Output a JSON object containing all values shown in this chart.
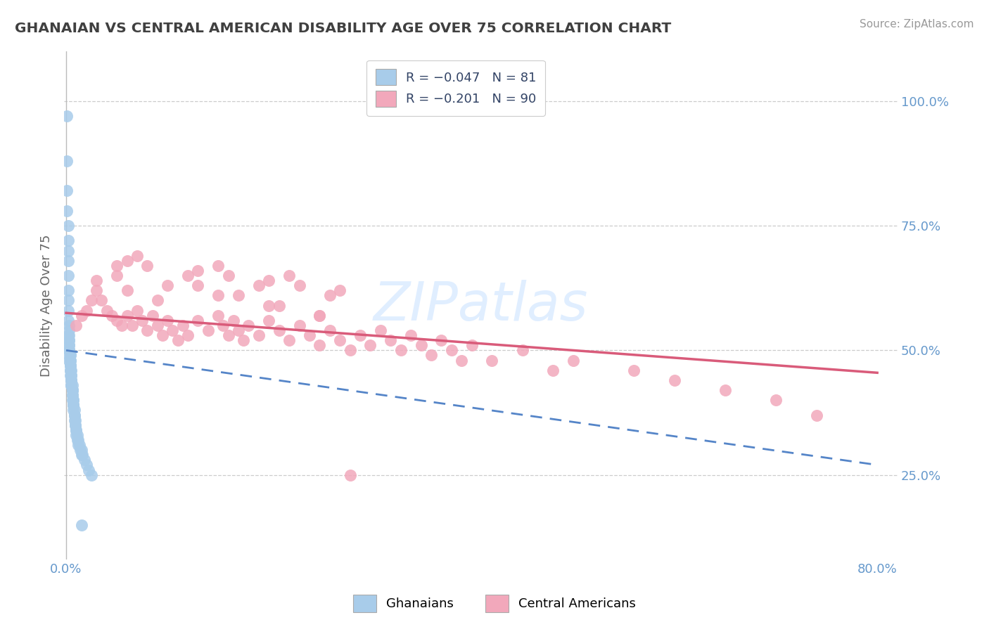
{
  "title": "GHANAIAN VS CENTRAL AMERICAN DISABILITY AGE OVER 75 CORRELATION CHART",
  "source": "Source: ZipAtlas.com",
  "ylabel": "Disability Age Over 75",
  "ytick_labels": [
    "25.0%",
    "50.0%",
    "75.0%",
    "100.0%"
  ],
  "ytick_vals": [
    0.25,
    0.5,
    0.75,
    1.0
  ],
  "xtick_labels": [
    "0.0%",
    "80.0%"
  ],
  "xtick_vals": [
    0.0,
    0.8
  ],
  "legend_blue_r": "-0.047",
  "legend_blue_n": "81",
  "legend_pink_r": "-0.201",
  "legend_pink_n": "90",
  "blue_scatter_color": "#A8CCEA",
  "pink_scatter_color": "#F2A8BB",
  "blue_line_color": "#5585C8",
  "pink_line_color": "#D95B7A",
  "watermark": "ZIPatlas",
  "xlim": [
    -0.002,
    0.82
  ],
  "ylim": [
    0.08,
    1.1
  ],
  "ghanaian_x": [
    0.001,
    0.001,
    0.001,
    0.001,
    0.002,
    0.002,
    0.002,
    0.002,
    0.002,
    0.002,
    0.002,
    0.002,
    0.002,
    0.003,
    0.003,
    0.003,
    0.003,
    0.003,
    0.003,
    0.003,
    0.003,
    0.003,
    0.003,
    0.003,
    0.004,
    0.004,
    0.004,
    0.004,
    0.004,
    0.004,
    0.004,
    0.004,
    0.004,
    0.005,
    0.005,
    0.005,
    0.005,
    0.005,
    0.005,
    0.005,
    0.005,
    0.006,
    0.006,
    0.006,
    0.006,
    0.006,
    0.006,
    0.006,
    0.007,
    0.007,
    0.007,
    0.007,
    0.007,
    0.007,
    0.008,
    0.008,
    0.008,
    0.008,
    0.009,
    0.009,
    0.009,
    0.01,
    0.01,
    0.01,
    0.011,
    0.011,
    0.012,
    0.012,
    0.013,
    0.014,
    0.015,
    0.015,
    0.016,
    0.018,
    0.02,
    0.022,
    0.025,
    0.002,
    0.003,
    0.004,
    0.015
  ],
  "ghanaian_y": [
    0.97,
    0.88,
    0.82,
    0.78,
    0.75,
    0.72,
    0.7,
    0.68,
    0.65,
    0.62,
    0.6,
    0.58,
    0.56,
    0.55,
    0.54,
    0.53,
    0.52,
    0.52,
    0.51,
    0.51,
    0.5,
    0.5,
    0.5,
    0.49,
    0.49,
    0.49,
    0.48,
    0.48,
    0.47,
    0.47,
    0.47,
    0.46,
    0.46,
    0.46,
    0.45,
    0.45,
    0.44,
    0.44,
    0.44,
    0.43,
    0.43,
    0.43,
    0.42,
    0.42,
    0.42,
    0.41,
    0.41,
    0.4,
    0.4,
    0.4,
    0.39,
    0.39,
    0.39,
    0.38,
    0.38,
    0.37,
    0.37,
    0.36,
    0.36,
    0.35,
    0.35,
    0.34,
    0.34,
    0.33,
    0.33,
    0.32,
    0.32,
    0.31,
    0.31,
    0.3,
    0.3,
    0.29,
    0.29,
    0.28,
    0.27,
    0.26,
    0.25,
    0.53,
    0.48,
    0.45,
    0.15
  ],
  "central_x": [
    0.01,
    0.015,
    0.02,
    0.025,
    0.03,
    0.035,
    0.04,
    0.045,
    0.05,
    0.055,
    0.06,
    0.065,
    0.07,
    0.075,
    0.08,
    0.085,
    0.09,
    0.095,
    0.1,
    0.105,
    0.11,
    0.115,
    0.12,
    0.13,
    0.14,
    0.15,
    0.155,
    0.16,
    0.165,
    0.17,
    0.175,
    0.18,
    0.19,
    0.2,
    0.21,
    0.22,
    0.23,
    0.24,
    0.25,
    0.26,
    0.27,
    0.28,
    0.29,
    0.3,
    0.31,
    0.32,
    0.33,
    0.34,
    0.35,
    0.36,
    0.37,
    0.38,
    0.39,
    0.4,
    0.03,
    0.06,
    0.09,
    0.13,
    0.17,
    0.21,
    0.25,
    0.05,
    0.1,
    0.15,
    0.2,
    0.25,
    0.05,
    0.12,
    0.19,
    0.26,
    0.06,
    0.13,
    0.2,
    0.27,
    0.07,
    0.15,
    0.22,
    0.08,
    0.16,
    0.23,
    0.45,
    0.5,
    0.56,
    0.6,
    0.65,
    0.7,
    0.74,
    0.42,
    0.48,
    0.28
  ],
  "central_y": [
    0.55,
    0.57,
    0.58,
    0.6,
    0.62,
    0.6,
    0.58,
    0.57,
    0.56,
    0.55,
    0.57,
    0.55,
    0.58,
    0.56,
    0.54,
    0.57,
    0.55,
    0.53,
    0.56,
    0.54,
    0.52,
    0.55,
    0.53,
    0.56,
    0.54,
    0.57,
    0.55,
    0.53,
    0.56,
    0.54,
    0.52,
    0.55,
    0.53,
    0.56,
    0.54,
    0.52,
    0.55,
    0.53,
    0.51,
    0.54,
    0.52,
    0.5,
    0.53,
    0.51,
    0.54,
    0.52,
    0.5,
    0.53,
    0.51,
    0.49,
    0.52,
    0.5,
    0.48,
    0.51,
    0.64,
    0.62,
    0.6,
    0.63,
    0.61,
    0.59,
    0.57,
    0.65,
    0.63,
    0.61,
    0.59,
    0.57,
    0.67,
    0.65,
    0.63,
    0.61,
    0.68,
    0.66,
    0.64,
    0.62,
    0.69,
    0.67,
    0.65,
    0.67,
    0.65,
    0.63,
    0.5,
    0.48,
    0.46,
    0.44,
    0.42,
    0.4,
    0.37,
    0.48,
    0.46,
    0.25
  ]
}
